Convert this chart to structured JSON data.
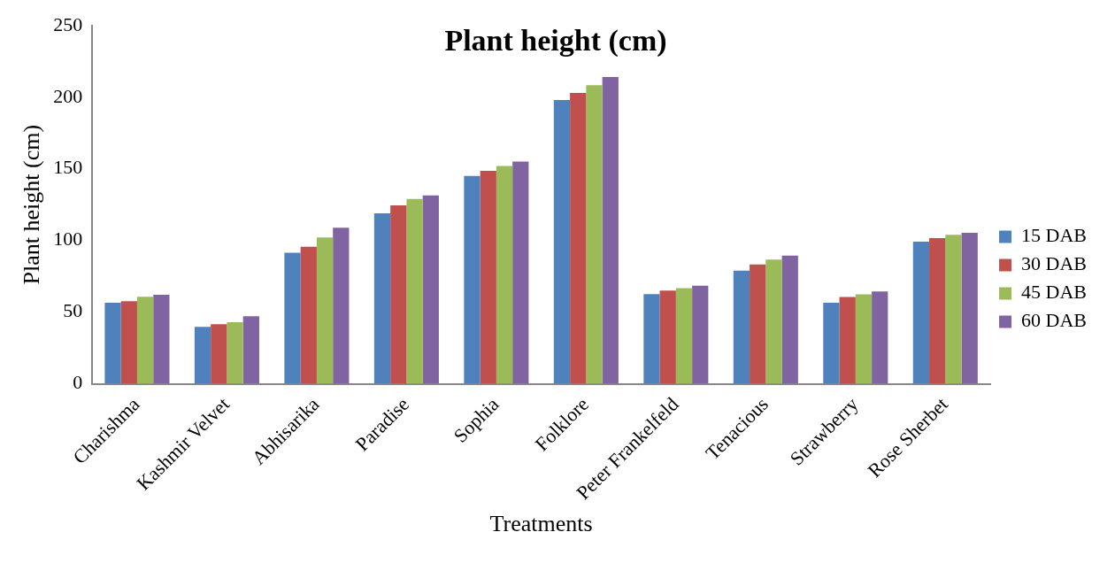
{
  "chart_data": {
    "type": "bar",
    "title": "Plant height (cm)",
    "xlabel": "Treatments",
    "ylabel": "Plant height (cm)",
    "categories": [
      "Charishma",
      "Kashmir Velvet",
      "Abhisarika",
      "Paradise",
      "Sophia",
      "Folklore",
      "Peter Frankelfeld",
      "Tenacious",
      "Strawberry",
      "Rose Sherbet"
    ],
    "series": [
      {
        "name": "15 DAB",
        "color": "#4f81bd",
        "values": [
          56.5,
          39.7,
          91.4,
          118.9,
          145,
          198,
          62.6,
          79,
          56.5,
          99.2
        ]
      },
      {
        "name": "30 DAB",
        "color": "#c0504d",
        "values": [
          57.7,
          41.6,
          95.6,
          124.5,
          148.6,
          203,
          65,
          83.3,
          60.5,
          101.6
        ]
      },
      {
        "name": "45 DAB",
        "color": "#9bbb59",
        "values": [
          60.7,
          43,
          102.1,
          129,
          152,
          208.3,
          66.7,
          86.6,
          62.4,
          104
        ]
      },
      {
        "name": "60 DAB",
        "color": "#8064a2",
        "values": [
          62.1,
          47.2,
          108.9,
          131.5,
          155,
          214,
          68.5,
          89.5,
          64.5,
          105.4
        ]
      }
    ],
    "ylim": [
      0,
      250
    ],
    "yticks": [
      0,
      50,
      100,
      150,
      200,
      250
    ],
    "grid": false,
    "legend": "right"
  }
}
